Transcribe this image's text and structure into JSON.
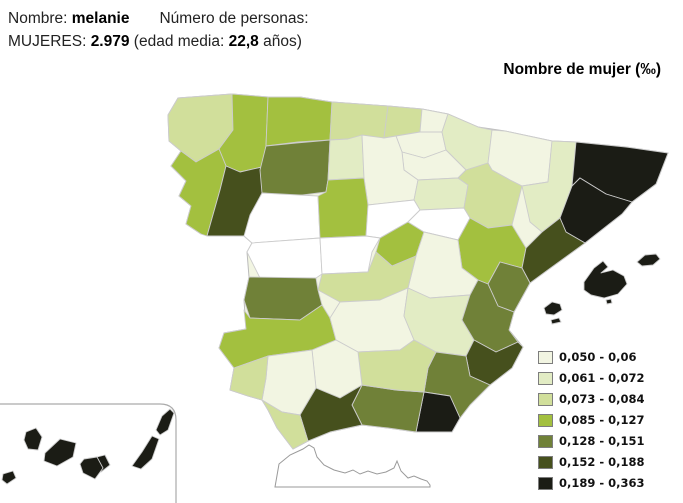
{
  "header": {
    "name_label": "Nombre:",
    "name_value": "melanie",
    "count_label": "Número de personas:",
    "women_label": "MUJERES:",
    "women_value": "2.979",
    "age_label": "(edad media:",
    "age_value": "22,8",
    "age_suffix": "años)"
  },
  "map_title": "Nombre de mujer (‰)",
  "legend": {
    "items": [
      {
        "range": "0,050 - 0,06",
        "color": "#f2f5e2"
      },
      {
        "range": "0,061 - 0,072",
        "color": "#e2ecc4"
      },
      {
        "range": "0,073 - 0,084",
        "color": "#d1df9b"
      },
      {
        "range": "0,085 - 0,127",
        "color": "#a3c03f"
      },
      {
        "range": "0,128 - 0,151",
        "color": "#708138"
      },
      {
        "range": "0,152 - 0,188",
        "color": "#46501d"
      },
      {
        "range": "0,189 - 0,363",
        "color": "#1b1c15"
      }
    ],
    "no_data_color": "#ffffff"
  },
  "chart_data": {
    "type": "heatmap",
    "subtype": "choropleth",
    "geography": "Spain, provinces (with Balearic and Canary Islands insets)",
    "title": "Nombre de mujer (‰)",
    "unit": "frequency of the female name per 1000 women",
    "legend_position": "bottom-right",
    "bins": [
      "0,050 - 0,06",
      "0,061 - 0,072",
      "0,073 - 0,084",
      "0,085 - 0,127",
      "0,128 - 0,151",
      "0,152 - 0,188",
      "0,189 - 0,363"
    ],
    "bin_note": "bin 0 = no data (white)",
    "regions": [
      {
        "id": "coruna",
        "name": "A Coruña",
        "bin": 3
      },
      {
        "id": "lugo",
        "name": "Lugo",
        "bin": 4
      },
      {
        "id": "pontevedra",
        "name": "Pontevedra",
        "bin": 4
      },
      {
        "id": "ourense",
        "name": "Ourense",
        "bin": 6
      },
      {
        "id": "asturias",
        "name": "Asturias",
        "bin": 4
      },
      {
        "id": "cantabria",
        "name": "Cantabria",
        "bin": 3
      },
      {
        "id": "bizkaia",
        "name": "Bizkaia",
        "bin": 3
      },
      {
        "id": "gipuzkoa",
        "name": "Gipuzkoa",
        "bin": 1
      },
      {
        "id": "alava",
        "name": "Álava",
        "bin": 1
      },
      {
        "id": "navarra",
        "name": "Navarra",
        "bin": 2
      },
      {
        "id": "rioja",
        "name": "La Rioja",
        "bin": 1
      },
      {
        "id": "leon",
        "name": "León",
        "bin": 5
      },
      {
        "id": "palencia",
        "name": "Palencia",
        "bin": 2
      },
      {
        "id": "burgos",
        "name": "Burgos",
        "bin": 1
      },
      {
        "id": "soria",
        "name": "Soria",
        "bin": 2
      },
      {
        "id": "zamora",
        "name": "Zamora",
        "bin": 0
      },
      {
        "id": "valladolid",
        "name": "Valladolid",
        "bin": 4
      },
      {
        "id": "segovia",
        "name": "Segovia",
        "bin": 0
      },
      {
        "id": "salamanca",
        "name": "Salamanca",
        "bin": 0
      },
      {
        "id": "avila",
        "name": "Ávila",
        "bin": 0
      },
      {
        "id": "madrid",
        "name": "Madrid",
        "bin": 4
      },
      {
        "id": "guadalajara",
        "name": "Guadalajara",
        "bin": 0
      },
      {
        "id": "huesca",
        "name": "Huesca",
        "bin": 1
      },
      {
        "id": "zaragoza",
        "name": "Zaragoza",
        "bin": 3
      },
      {
        "id": "teruel",
        "name": "Teruel",
        "bin": 4
      },
      {
        "id": "lleida",
        "name": "Lleida",
        "bin": 2
      },
      {
        "id": "girona",
        "name": "Girona",
        "bin": 7
      },
      {
        "id": "barcelona",
        "name": "Barcelona",
        "bin": 7
      },
      {
        "id": "tarragona",
        "name": "Tarragona",
        "bin": 6
      },
      {
        "id": "castellon",
        "name": "Castellón",
        "bin": 5
      },
      {
        "id": "cuenca",
        "name": "Cuenca",
        "bin": 1
      },
      {
        "id": "toledo",
        "name": "Toledo",
        "bin": 3
      },
      {
        "id": "caceres",
        "name": "Cáceres",
        "bin": 5
      },
      {
        "id": "badajoz",
        "name": "Badajoz",
        "bin": 4
      },
      {
        "id": "ciudadreal",
        "name": "Ciudad Real",
        "bin": 1
      },
      {
        "id": "albacete",
        "name": "Albacete",
        "bin": 2
      },
      {
        "id": "valencia",
        "name": "Valencia",
        "bin": 5
      },
      {
        "id": "alicante",
        "name": "Alicante",
        "bin": 6
      },
      {
        "id": "murcia",
        "name": "Murcia",
        "bin": 5
      },
      {
        "id": "almeria",
        "name": "Almería",
        "bin": 7
      },
      {
        "id": "granada",
        "name": "Granada",
        "bin": 5
      },
      {
        "id": "jaen",
        "name": "Jaén",
        "bin": 3
      },
      {
        "id": "cordoba",
        "name": "Córdoba",
        "bin": 1
      },
      {
        "id": "sevilla",
        "name": "Sevilla",
        "bin": 1
      },
      {
        "id": "malaga",
        "name": "Málaga",
        "bin": 6
      },
      {
        "id": "cadiz",
        "name": "Cádiz",
        "bin": 3
      },
      {
        "id": "huelva",
        "name": "Huelva",
        "bin": 3
      },
      {
        "id": "mallorca",
        "name": "Mallorca (Illes Balears)",
        "bin": 7
      },
      {
        "id": "menorca",
        "name": "Menorca (Illes Balears)",
        "bin": 7
      },
      {
        "id": "ibiza",
        "name": "Eivissa (Illes Balears)",
        "bin": 7
      },
      {
        "id": "formentera",
        "name": "Formentera (Illes Balears)",
        "bin": 7
      },
      {
        "id": "lapalma",
        "name": "La Palma (Canarias)",
        "bin": 7
      },
      {
        "id": "elhierro",
        "name": "El Hierro (Canarias)",
        "bin": 7
      },
      {
        "id": "lagomera",
        "name": "La Gomera (Canarias)",
        "bin": 7
      },
      {
        "id": "tenerife",
        "name": "Tenerife (Canarias)",
        "bin": 7
      },
      {
        "id": "grancanaria",
        "name": "Gran Canaria (Canarias)",
        "bin": 7
      },
      {
        "id": "fuerteventura",
        "name": "Fuerteventura (Canarias)",
        "bin": 7
      },
      {
        "id": "lanzarote",
        "name": "Lanzarote (Canarias)",
        "bin": 7
      }
    ]
  }
}
